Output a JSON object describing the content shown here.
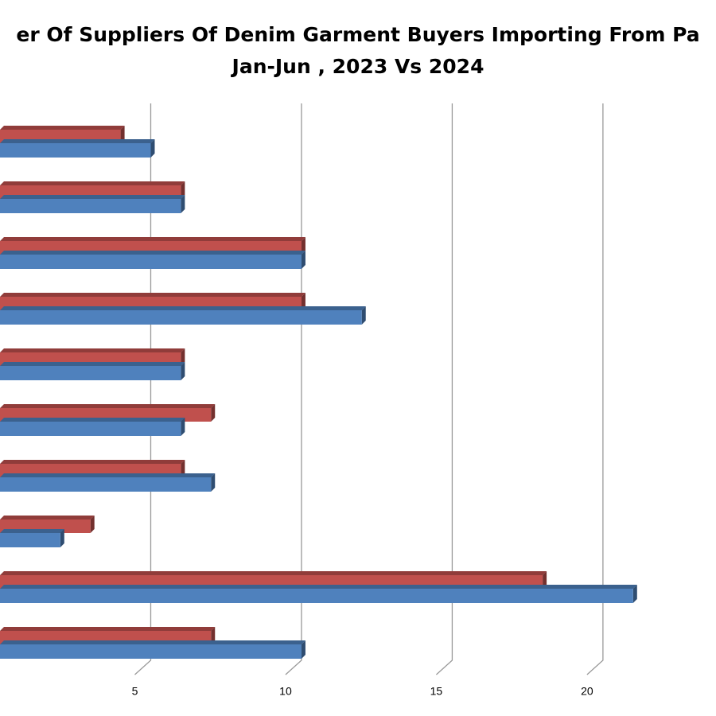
{
  "chart_data": {
    "type": "bar3d-horizontal",
    "title": "er Of Suppliers Of Denim Garment Buyers Importing From Pa",
    "subtitle": "Jan-Jun , 2023 Vs 2024",
    "categories": [
      null,
      null,
      null,
      null,
      null,
      null,
      null,
      null,
      null,
      null
    ],
    "series": [
      {
        "color": "#c0504d",
        "values": [
          4,
          6,
          10,
          10,
          6,
          7,
          6,
          3,
          18,
          7
        ]
      },
      {
        "color": "#4f81bd",
        "values": [
          5,
          6,
          10,
          12,
          6,
          6,
          7,
          2,
          21,
          10
        ]
      }
    ],
    "xlim": [
      0,
      23.75
    ],
    "xticks": [
      5,
      10,
      15,
      20
    ],
    "grid": true
  }
}
